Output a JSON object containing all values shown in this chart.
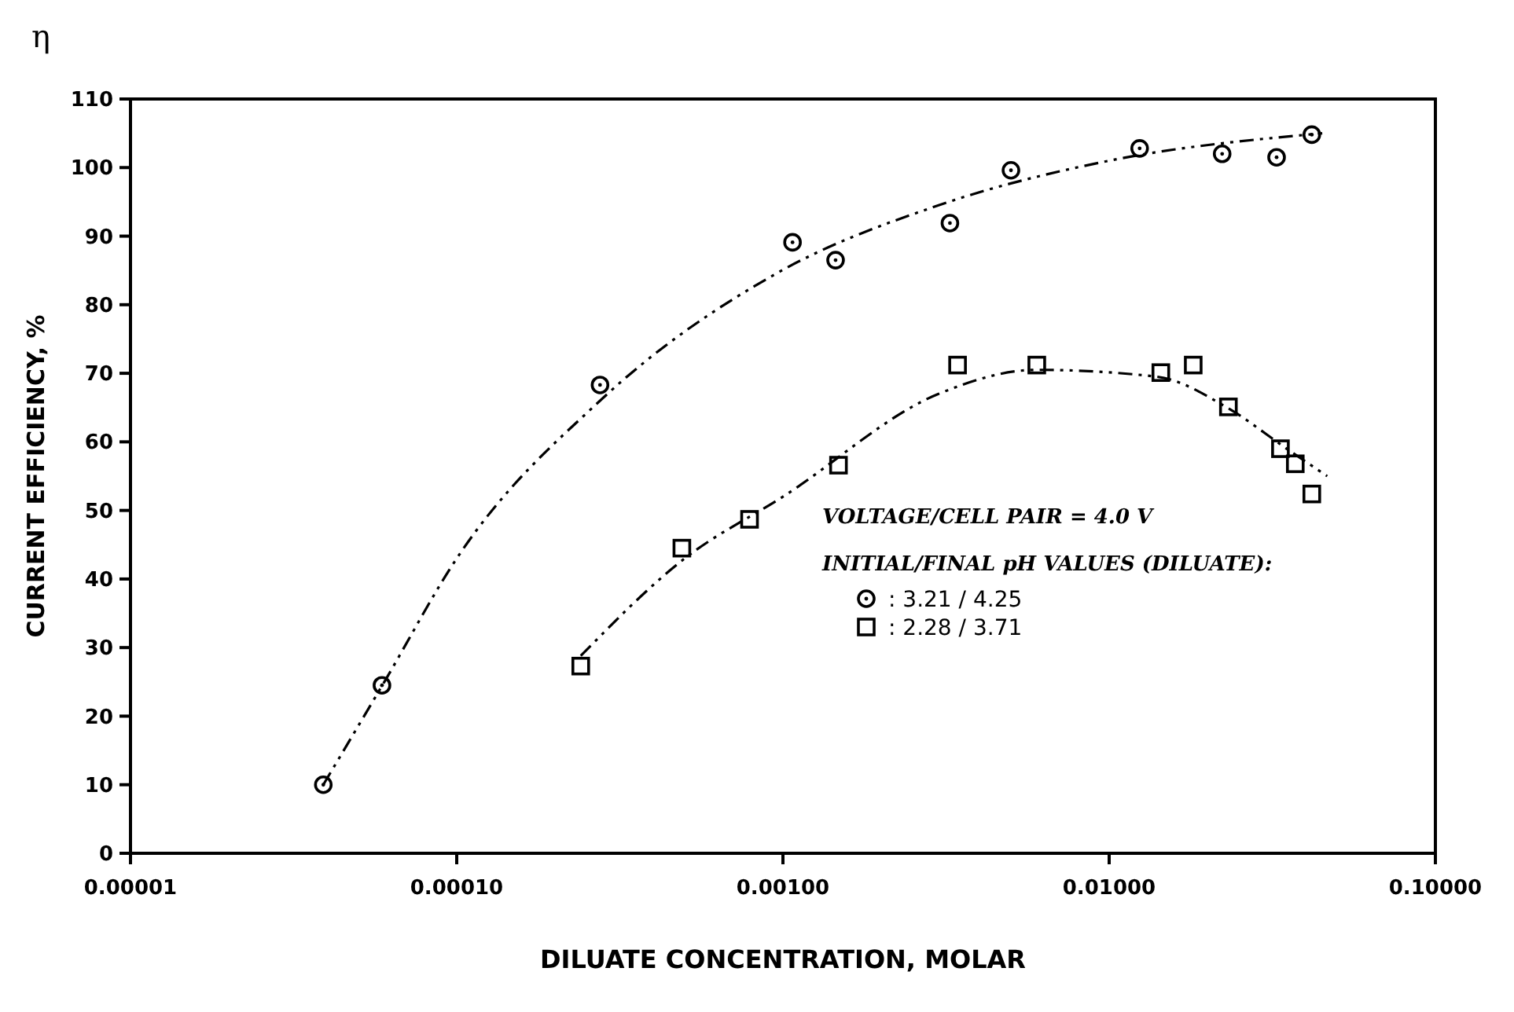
{
  "chart_data": {
    "type": "scatter",
    "xlabel": "DILUATE CONCENTRATION, MOLAR",
    "ylabel": "CURRENT EFFICIENCY, %",
    "annotations": [
      "η",
      "VOLTAGE/CELL PAIR = 4.0 V"
    ],
    "legend_title": "INITIAL/FINAL pH VALUES (DILUATE):",
    "legend": "center",
    "log": "x",
    "xlim": [
      1e-05,
      0.1
    ],
    "ylim": [
      0,
      110
    ],
    "xticks": [
      {
        "value": 1e-05,
        "label": "0.00001"
      },
      {
        "value": 0.0001,
        "label": "0.00010"
      },
      {
        "value": 0.001,
        "label": "0.00100"
      },
      {
        "value": 0.01,
        "label": "0.01000"
      },
      {
        "value": 0.1,
        "label": "0.10000"
      }
    ],
    "yticks": [
      0,
      10,
      20,
      30,
      40,
      50,
      60,
      70,
      80,
      90,
      100,
      110
    ],
    "series": [
      {
        "name": ": 3.21 / 4.25",
        "marker": "circle",
        "color": "#000000",
        "x": [
          3.9e-05,
          5.9e-05,
          0.000275,
          0.00107,
          0.00145,
          0.00325,
          0.005,
          0.0124,
          0.0222,
          0.0326,
          0.0418
        ],
        "values": [
          10,
          24.5,
          68.3,
          89.1,
          86.5,
          91.9,
          99.6,
          102.8,
          102,
          101.5,
          104.8
        ]
      },
      {
        "name": ": 2.28 / 3.71",
        "marker": "square",
        "color": "#000000",
        "x": [
          0.00024,
          0.00049,
          0.00079,
          0.00148,
          0.00343,
          0.006,
          0.0144,
          0.0181,
          0.0232,
          0.0335,
          0.0372,
          0.0418
        ],
        "values": [
          27.3,
          44.5,
          48.7,
          56.6,
          71.2,
          71.2,
          70.1,
          71.2,
          65.1,
          59,
          56.8,
          52.4
        ]
      },
      {
        "type": "line",
        "line_style": "dashed",
        "marker": "none",
        "color": "#000000",
        "x": [
          3.9e-05,
          6e-05,
          0.0001,
          0.000275,
          0.00095,
          0.003,
          0.01,
          0.045
        ],
        "values": [
          10,
          25,
          43,
          66,
          84.5,
          94.5,
          101,
          105
        ]
      },
      {
        "type": "line",
        "line_style": "dashed",
        "marker": "none",
        "color": "#000000",
        "x": [
          0.00024,
          0.0005,
          0.001,
          0.003,
          0.006,
          0.014,
          0.023,
          0.035,
          0.0466
        ],
        "values": [
          28.8,
          43,
          52,
          67,
          70.5,
          69.5,
          65,
          59,
          55
        ]
      }
    ]
  }
}
